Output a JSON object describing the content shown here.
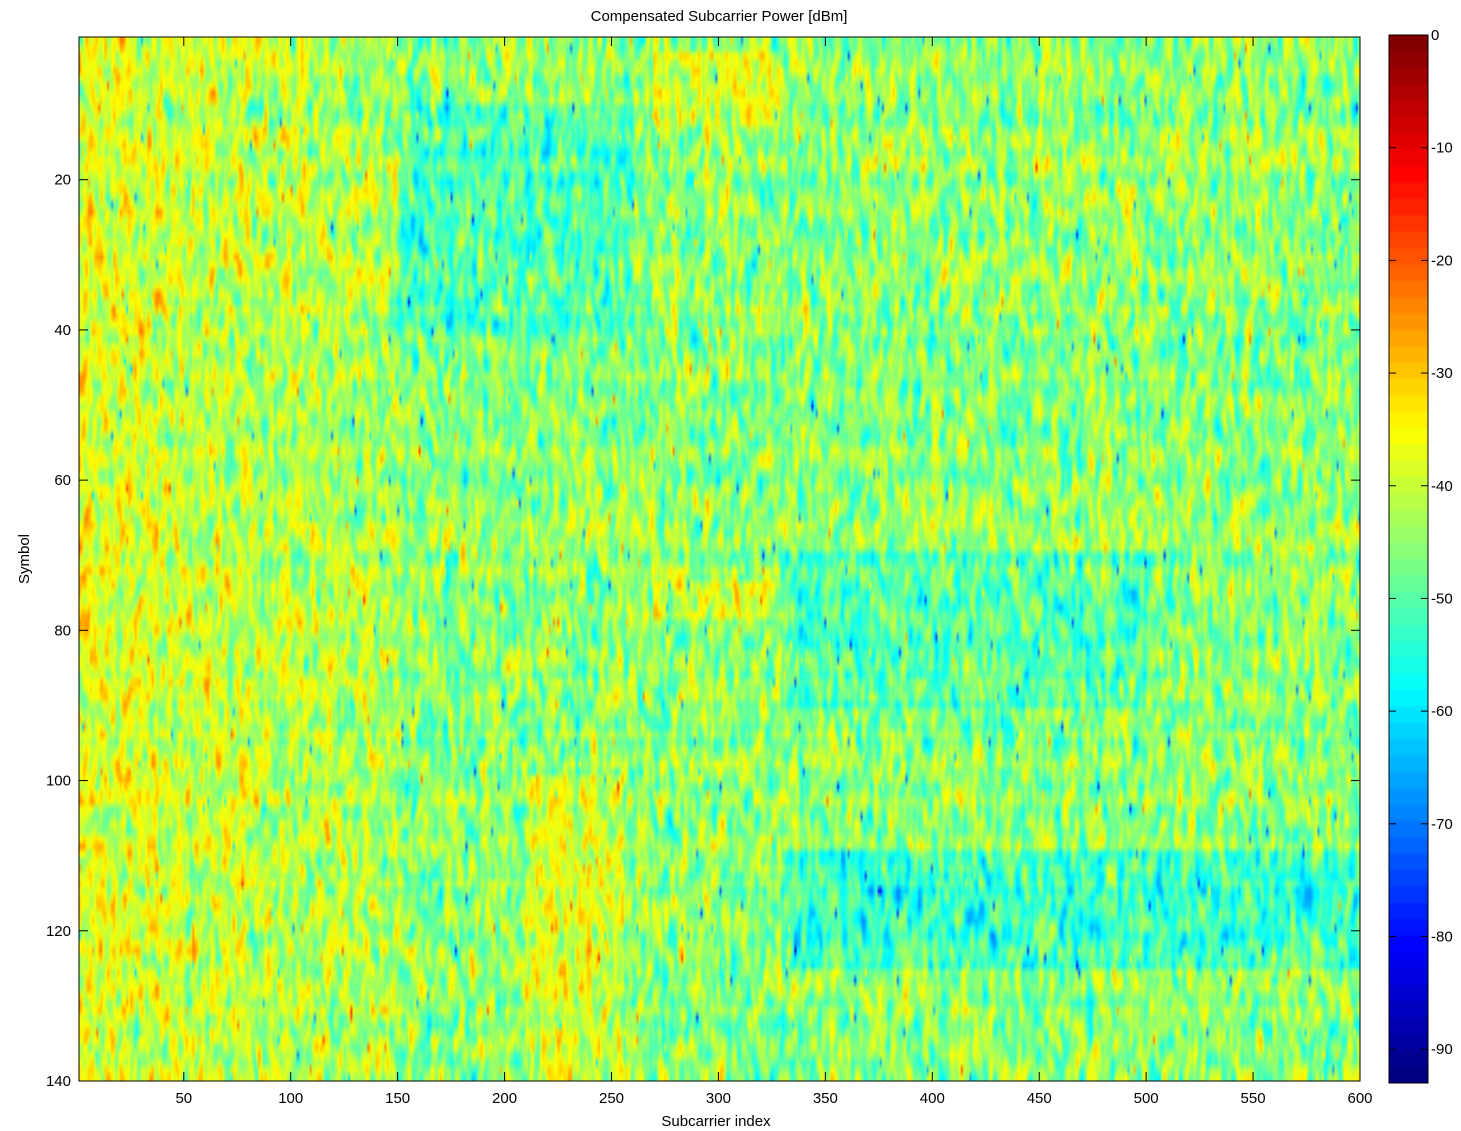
{
  "chart_data": {
    "type": "heatmap",
    "title": "Compensated Subcarrier Power [dBm]",
    "xlabel": "Subcarrier index",
    "ylabel": "Symbol",
    "xlim": [
      1,
      600
    ],
    "ylim": [
      1,
      140
    ],
    "y_direction": "reversed",
    "xticks": [
      50,
      100,
      150,
      200,
      250,
      300,
      350,
      400,
      450,
      500,
      550,
      600
    ],
    "yticks": [
      20,
      40,
      60,
      80,
      100,
      120,
      140
    ],
    "colorbar": {
      "colormap": "jet",
      "range": [
        -93,
        0
      ],
      "ticks": [
        0,
        -10,
        -20,
        -30,
        -40,
        -50,
        -60,
        -70,
        -80,
        -90
      ]
    },
    "value_summary": {
      "typical_range": [
        -65,
        -25
      ],
      "mean": -45,
      "higher_power_regions": [
        {
          "subcarriers": [
            1,
            150
          ],
          "symbols": [
            1,
            140
          ],
          "level": -35
        },
        {
          "subcarriers": [
            210,
            255
          ],
          "symbols": [
            100,
            140
          ],
          "level": -33
        },
        {
          "subcarriers": [
            270,
            330
          ],
          "symbols": [
            3,
            12
          ],
          "level": -30
        },
        {
          "subcarriers": [
            270,
            330
          ],
          "symbols": [
            74,
            78
          ],
          "level": -33
        }
      ],
      "lower_power_regions": [
        {
          "subcarriers": [
            150,
            260
          ],
          "symbols": [
            10,
            40
          ],
          "level": -55
        },
        {
          "subcarriers": [
            330,
            600
          ],
          "symbols": [
            110,
            125
          ],
          "level": -58
        },
        {
          "subcarriers": [
            330,
            500
          ],
          "symbols": [
            70,
            90
          ],
          "level": -55
        }
      ]
    }
  }
}
